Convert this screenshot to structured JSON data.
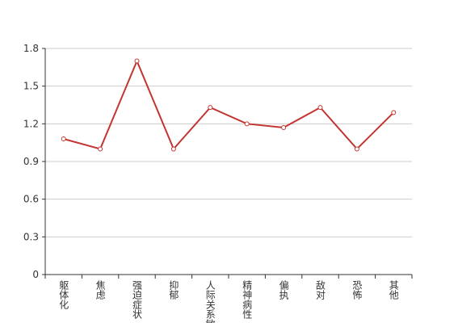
{
  "chart_data": {
    "type": "line",
    "categories": [
      "躯体化",
      "焦虑",
      "强迫症状",
      "抑郁",
      "人际关系敏感",
      "精神病性",
      "偏执",
      "敌对",
      "恐怖",
      "其他"
    ],
    "series": [
      {
        "color": "#c23531",
        "values": [
          1.08,
          1.0,
          1.7,
          1.0,
          1.33,
          1.2,
          1.17,
          1.33,
          1.0,
          1.29
        ]
      }
    ],
    "ylim": [
      0,
      1.8
    ],
    "yticks": [
      0,
      0.3,
      0.6,
      0.9,
      1.2,
      1.5,
      1.8
    ],
    "grid": true
  }
}
